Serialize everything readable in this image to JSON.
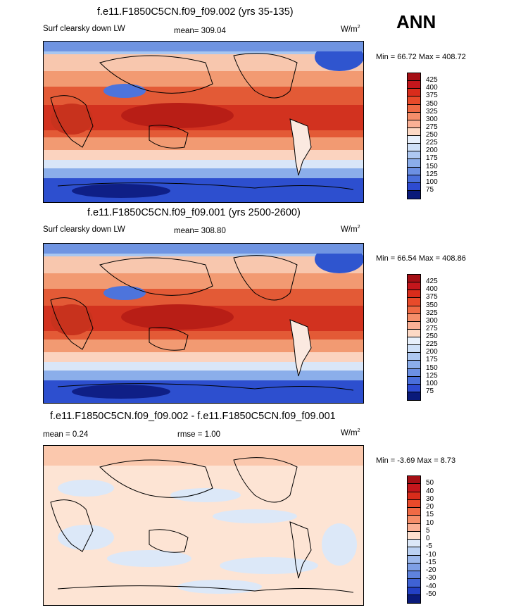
{
  "season": "ANN",
  "panels": [
    {
      "title": "f.e11.F1850C5CN.f09_f09.002 (yrs 35-135)",
      "left_label": "Surf clearsky down LW",
      "center_label": "mean= 309.04",
      "units": "W/m",
      "units_sup": "2",
      "minmax": "Min =  66.72 Max = 408.72",
      "levels": [
        "425",
        "400",
        "375",
        "350",
        "325",
        "300",
        "275",
        "250",
        "225",
        "200",
        "175",
        "150",
        "125",
        "100",
        "75"
      ],
      "colors": [
        "#a50f15",
        "#c4161c",
        "#d92c1b",
        "#e84a2a",
        "#ef6a45",
        "#f58e6a",
        "#fab095",
        "#fdd9c5",
        "#e8f0fb",
        "#cfe0f7",
        "#aec8f1",
        "#8badea",
        "#6c90e3",
        "#4a6fdb",
        "#2e4bd1",
        "#0a1a7a"
      ]
    },
    {
      "title": "f.e11.F1850C5CN.f09_f09.001 (yrs 2500-2600)",
      "left_label": "Surf clearsky down LW",
      "center_label": "mean= 308.80",
      "units": "W/m",
      "units_sup": "2",
      "minmax": "Min =  66.54 Max = 408.86",
      "levels": [
        "425",
        "400",
        "375",
        "350",
        "325",
        "300",
        "275",
        "250",
        "225",
        "200",
        "175",
        "150",
        "125",
        "100",
        "75"
      ],
      "colors": [
        "#a50f15",
        "#c4161c",
        "#d92c1b",
        "#e84a2a",
        "#ef6a45",
        "#f58e6a",
        "#fab095",
        "#fdd9c5",
        "#e8f0fb",
        "#cfe0f7",
        "#aec8f1",
        "#8badea",
        "#6c90e3",
        "#4a6fdb",
        "#2e4bd1",
        "#0a1a7a"
      ]
    },
    {
      "title": "f.e11.F1850C5CN.f09_f09.002 - f.e11.F1850C5CN.f09_f09.001",
      "left_label": "mean =   0.24",
      "center_label": "rmse =   1.00",
      "units": "W/m",
      "units_sup": "2",
      "minmax": "Min =  -3.69 Max =   8.73",
      "levels": [
        "50",
        "40",
        "30",
        "20",
        "15",
        "10",
        "5",
        "0",
        "-5",
        "-10",
        "-15",
        "-20",
        "-30",
        "-40",
        "-50"
      ],
      "colors": [
        "#a50f15",
        "#c4161c",
        "#d92c1b",
        "#e84a2a",
        "#ef6a45",
        "#f58e6a",
        "#fab095",
        "#fde0cf",
        "#dce8f8",
        "#bcd2f3",
        "#9db9ec",
        "#7e9fe5",
        "#5f83dd",
        "#3f62d4",
        "#2340c4",
        "#0a1a7a"
      ]
    }
  ],
  "chart_data": [
    {
      "type": "heatmap",
      "title": "f.e11.F1850C5CN.f09_f09.002 (yrs 35-135)",
      "variable": "Surf clearsky down LW",
      "units": "W/m2",
      "mean": 309.04,
      "min": 66.72,
      "max": 408.72,
      "contour_levels": [
        75,
        100,
        125,
        150,
        175,
        200,
        225,
        250,
        275,
        300,
        325,
        350,
        375,
        400,
        425
      ],
      "colormap": "blue-white-red"
    },
    {
      "type": "heatmap",
      "title": "f.e11.F1850C5CN.f09_f09.001 (yrs 2500-2600)",
      "variable": "Surf clearsky down LW",
      "units": "W/m2",
      "mean": 308.8,
      "min": 66.54,
      "max": 408.86,
      "contour_levels": [
        75,
        100,
        125,
        150,
        175,
        200,
        225,
        250,
        275,
        300,
        325,
        350,
        375,
        400,
        425
      ],
      "colormap": "blue-white-red"
    },
    {
      "type": "heatmap",
      "title": "f.e11.F1850C5CN.f09_f09.002 - f.e11.F1850C5CN.f09_f09.001",
      "units": "W/m2",
      "mean": 0.24,
      "rmse": 1.0,
      "min": -3.69,
      "max": 8.73,
      "contour_levels": [
        -50,
        -40,
        -30,
        -20,
        -15,
        -10,
        -5,
        0,
        5,
        10,
        15,
        20,
        30,
        40,
        50
      ],
      "colormap": "blue-white-red"
    }
  ]
}
